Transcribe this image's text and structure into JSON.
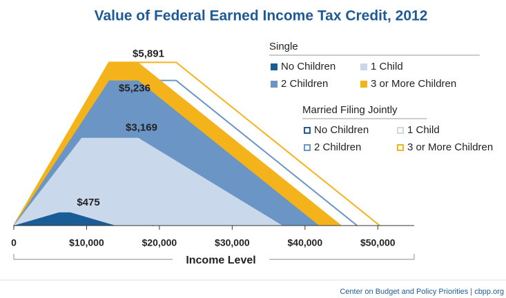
{
  "chart_data": {
    "type": "area",
    "title": "Value of Federal Earned Income Tax Credit, 2012",
    "x_label": "Income Level",
    "source": "Center on Budget and Policy Priorities | cbpp.org",
    "xlim": [
      0,
      55000
    ],
    "ylim": [
      0,
      6000
    ],
    "xticks": [
      0,
      {
        "value": 10000,
        "label": "$10,000"
      },
      {
        "value": 20000,
        "label": "$20,000"
      },
      {
        "value": 30000,
        "label": "$30,000"
      },
      {
        "value": 40000,
        "label": "$40,000"
      },
      {
        "value": 50000,
        "label": "$50,000"
      }
    ],
    "series_groups": [
      {
        "name": "Married Filing Jointly",
        "fill": false,
        "series": [
          {
            "name": "No Children",
            "color": "#1a5c96",
            "x": [
              0,
              6210,
              12980,
              19190
            ],
            "values": [
              0,
              475,
              475,
              0
            ]
          },
          {
            "name": "1 Child",
            "color": "#c9d8ea",
            "x": [
              0,
              9320,
              22300,
              42130
            ],
            "values": [
              0,
              3169,
              3169,
              0
            ]
          },
          {
            "name": "2 Children",
            "color": "#6a95c4",
            "x": [
              0,
              13090,
              22300,
              47162
            ],
            "values": [
              0,
              5236,
              5236,
              0
            ]
          },
          {
            "name": "3 or More Children",
            "color": "#f5b31b",
            "x": [
              0,
              13090,
              22300,
              50270
            ],
            "values": [
              0,
              5891,
              5891,
              0
            ]
          }
        ]
      },
      {
        "name": "Single",
        "fill": true,
        "series": [
          {
            "name": "No Children",
            "color": "#1a5c96",
            "x": [
              0,
              6210,
              7770,
              13980
            ],
            "values": [
              0,
              475,
              475,
              0
            ]
          },
          {
            "name": "1 Child",
            "color": "#c9d8ea",
            "x": [
              0,
              9320,
              17090,
              36920
            ],
            "values": [
              0,
              3169,
              3169,
              0
            ]
          },
          {
            "name": "2 Children",
            "color": "#6a95c4",
            "x": [
              0,
              13090,
              17090,
              41952
            ],
            "values": [
              0,
              5236,
              5236,
              0
            ]
          },
          {
            "name": "3 or More Children",
            "color": "#f5b31b",
            "x": [
              0,
              13090,
              17090,
              45060
            ],
            "values": [
              0,
              5891,
              5891,
              0
            ]
          }
        ]
      }
    ],
    "annotations": [
      {
        "label": "$5,891",
        "value": 5891
      },
      {
        "label": "$5,236",
        "value": 5236
      },
      {
        "label": "$3,169",
        "value": 3169
      },
      {
        "label": "$475",
        "value": 475
      }
    ]
  }
}
